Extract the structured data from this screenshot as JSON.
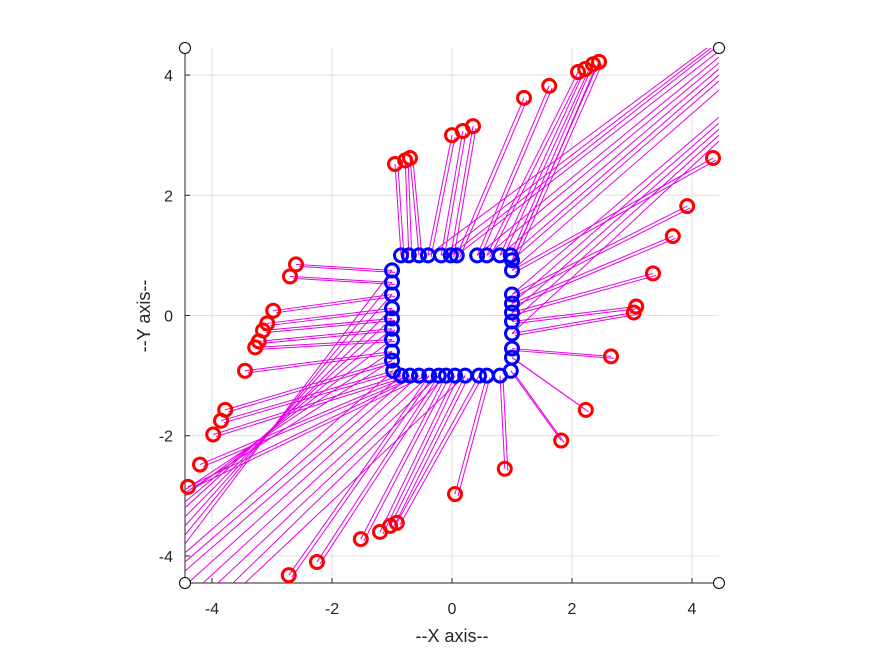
{
  "chart_data": {
    "type": "scatter",
    "xlabel": "--X axis--",
    "ylabel": "--Y axis--",
    "xlim": [
      -4.45,
      4.45
    ],
    "ylim": [
      -4.45,
      4.45
    ],
    "grid": true,
    "xticks": [
      -4,
      -2,
      0,
      2,
      4
    ],
    "yticks": [
      -4,
      -2,
      0,
      2,
      4
    ],
    "xtick_labels": [
      "-4",
      "-2",
      "0",
      "2",
      "4"
    ],
    "ytick_labels": [
      "-4",
      "-2",
      "0",
      "2",
      "4"
    ],
    "colors": {
      "outer": "#ff0000",
      "inner": "#0000ff",
      "links": "#e600e6",
      "grid": "#e0e0e0",
      "axis": "#262626"
    },
    "corner_markers": [
      [
        -4.45,
        4.45
      ],
      [
        4.45,
        4.45
      ],
      [
        -4.45,
        -4.45
      ],
      [
        4.45,
        -4.45
      ]
    ],
    "outer_points": [
      [
        -0.95,
        2.52
      ],
      [
        -0.78,
        2.58
      ],
      [
        -0.7,
        2.62
      ],
      [
        0.0,
        3.0
      ],
      [
        0.18,
        3.07
      ],
      [
        0.35,
        3.15
      ],
      [
        1.2,
        3.62
      ],
      [
        1.62,
        3.82
      ],
      [
        2.1,
        4.05
      ],
      [
        2.22,
        4.1
      ],
      [
        2.35,
        4.18
      ],
      [
        2.45,
        4.22
      ],
      [
        4.35,
        2.62
      ],
      [
        3.92,
        1.82
      ],
      [
        3.68,
        1.32
      ],
      [
        3.35,
        0.7
      ],
      [
        3.07,
        0.15
      ],
      [
        3.03,
        0.05
      ],
      [
        2.65,
        -0.68
      ],
      [
        2.23,
        -1.57
      ],
      [
        1.82,
        -2.08
      ],
      [
        0.88,
        -2.55
      ],
      [
        0.05,
        -2.97
      ],
      [
        -0.92,
        -3.45
      ],
      [
        -1.03,
        -3.5
      ],
      [
        -1.2,
        -3.6
      ],
      [
        -1.52,
        -3.72
      ],
      [
        -2.25,
        -4.1
      ],
      [
        -2.72,
        -4.32
      ],
      [
        -4.4,
        -2.85
      ],
      [
        -4.2,
        -2.48
      ],
      [
        -3.98,
        -1.98
      ],
      [
        -3.85,
        -1.75
      ],
      [
        -3.78,
        -1.57
      ],
      [
        -3.45,
        -0.92
      ],
      [
        -3.28,
        -0.53
      ],
      [
        -3.22,
        -0.43
      ],
      [
        -3.15,
        -0.25
      ],
      [
        -3.08,
        -0.13
      ],
      [
        -2.98,
        0.08
      ],
      [
        -2.7,
        0.65
      ],
      [
        -2.6,
        0.85
      ]
    ],
    "inner_points": [
      [
        -0.85,
        1.0
      ],
      [
        -0.72,
        1.0
      ],
      [
        -0.55,
        1.0
      ],
      [
        -0.4,
        1.0
      ],
      [
        -0.18,
        1.0
      ],
      [
        -0.02,
        1.0
      ],
      [
        0.08,
        1.0
      ],
      [
        0.42,
        1.0
      ],
      [
        0.58,
        1.0
      ],
      [
        0.8,
        1.0
      ],
      [
        0.98,
        1.0
      ],
      [
        1.0,
        0.92
      ],
      [
        1.0,
        0.75
      ],
      [
        1.0,
        0.35
      ],
      [
        1.0,
        0.2
      ],
      [
        1.0,
        0.05
      ],
      [
        1.0,
        -0.1
      ],
      [
        1.0,
        -0.3
      ],
      [
        1.0,
        -0.55
      ],
      [
        1.0,
        -0.7
      ],
      [
        0.98,
        -0.92
      ],
      [
        0.8,
        -1.0
      ],
      [
        0.58,
        -1.0
      ],
      [
        0.45,
        -1.0
      ],
      [
        0.22,
        -1.0
      ],
      [
        0.05,
        -1.0
      ],
      [
        -0.1,
        -1.0
      ],
      [
        -0.22,
        -1.0
      ],
      [
        -0.38,
        -1.0
      ],
      [
        -0.55,
        -1.0
      ],
      [
        -0.7,
        -1.0
      ],
      [
        -0.85,
        -1.0
      ],
      [
        -0.98,
        -0.92
      ],
      [
        -1.0,
        -0.75
      ],
      [
        -1.0,
        -0.6
      ],
      [
        -1.0,
        -0.4
      ],
      [
        -1.0,
        -0.22
      ],
      [
        -1.0,
        -0.05
      ],
      [
        -1.0,
        0.12
      ],
      [
        -1.0,
        0.35
      ],
      [
        -1.0,
        0.55
      ],
      [
        -1.0,
        0.75
      ]
    ],
    "extra_links": [
      [
        [
          -0.4,
          1.0
        ],
        [
          4.45,
          4.6
        ]
      ],
      [
        [
          -0.18,
          1.0
        ],
        [
          4.45,
          4.55
        ]
      ],
      [
        [
          -0.02,
          1.0
        ],
        [
          4.45,
          4.5
        ]
      ],
      [
        [
          0.08,
          1.0
        ],
        [
          4.45,
          4.4
        ]
      ],
      [
        [
          0.42,
          1.0
        ],
        [
          4.45,
          4.3
        ]
      ],
      [
        [
          0.58,
          1.0
        ],
        [
          4.45,
          4.2
        ]
      ],
      [
        [
          0.8,
          1.0
        ],
        [
          4.45,
          4.1
        ]
      ],
      [
        [
          0.98,
          1.0
        ],
        [
          4.45,
          4.0
        ]
      ],
      [
        [
          1.0,
          0.92
        ],
        [
          4.45,
          3.9
        ]
      ],
      [
        [
          1.0,
          0.75
        ],
        [
          4.45,
          3.75
        ]
      ],
      [
        [
          1.0,
          0.35
        ],
        [
          4.45,
          3.3
        ]
      ],
      [
        [
          1.0,
          0.2
        ],
        [
          4.45,
          3.2
        ]
      ],
      [
        [
          1.0,
          0.05
        ],
        [
          4.45,
          3.1
        ]
      ],
      [
        [
          1.0,
          -0.1
        ],
        [
          4.45,
          3.0
        ]
      ],
      [
        [
          1.0,
          -0.3
        ],
        [
          4.45,
          2.9
        ]
      ],
      [
        [
          -1.0,
          -0.4
        ],
        [
          -4.45,
          -3.0
        ]
      ],
      [
        [
          -1.0,
          -0.22
        ],
        [
          -4.45,
          -3.1
        ]
      ],
      [
        [
          -1.0,
          -0.05
        ],
        [
          -4.45,
          -3.2
        ]
      ],
      [
        [
          -1.0,
          0.12
        ],
        [
          -4.45,
          -3.35
        ]
      ],
      [
        [
          -1.0,
          0.35
        ],
        [
          -4.45,
          -3.5
        ]
      ],
      [
        [
          -1.0,
          0.55
        ],
        [
          -4.45,
          -3.65
        ]
      ],
      [
        [
          -1.0,
          0.75
        ],
        [
          -4.45,
          -3.8
        ]
      ],
      [
        [
          -0.98,
          -0.92
        ],
        [
          -4.45,
          -3.95
        ]
      ],
      [
        [
          -0.85,
          -1.0
        ],
        [
          -4.45,
          -4.1
        ]
      ],
      [
        [
          -0.7,
          -1.0
        ],
        [
          -4.45,
          -4.25
        ]
      ],
      [
        [
          -0.55,
          -1.0
        ],
        [
          -4.4,
          -4.45
        ]
      ],
      [
        [
          -0.38,
          -1.0
        ],
        [
          -4.15,
          -4.45
        ]
      ],
      [
        [
          -0.22,
          -1.0
        ],
        [
          -3.9,
          -4.45
        ]
      ],
      [
        [
          -0.1,
          -1.0
        ],
        [
          -3.65,
          -4.45
        ]
      ],
      [
        [
          -1.0,
          -0.6
        ],
        [
          -4.45,
          -2.9
        ]
      ],
      [
        [
          -1.0,
          -0.75
        ],
        [
          -4.45,
          -2.95
        ]
      ],
      [
        [
          0.22,
          -1.0
        ],
        [
          -3.45,
          -4.45
        ]
      ]
    ]
  }
}
